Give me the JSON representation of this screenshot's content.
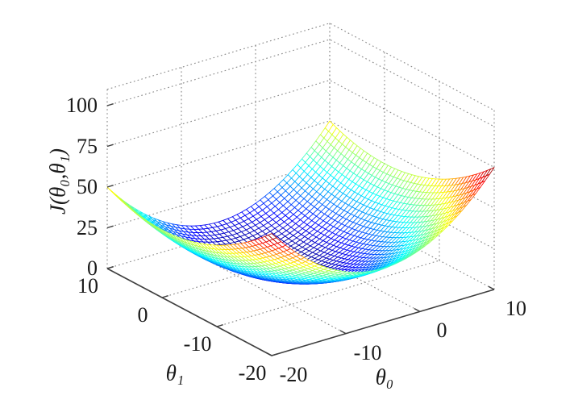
{
  "chart_data": {
    "type": "surface",
    "title": "",
    "xlabel": "θ₀",
    "ylabel": "θ₁",
    "zlabel": "J(θ₀,θ₁)",
    "x_ticks": [
      -20,
      -10,
      0,
      10
    ],
    "y_ticks": [
      10,
      0,
      -10,
      -20
    ],
    "z_ticks": [
      0,
      25,
      50,
      75,
      100
    ],
    "x_range": [
      -20,
      10
    ],
    "y_range": [
      -20,
      10
    ],
    "z_range": [
      0,
      110
    ],
    "surface": {
      "description": "convex bowl-shaped cost surface J(theta0,theta1) = a*(theta0-t0_min)^2 + b*(theta1-t1_min)^2",
      "params": {
        "a": 0.185,
        "b": 0.08333,
        "t0_min": -5,
        "t1_min": 0
      },
      "corner_values": [
        {
          "theta0": -20,
          "theta1": 10,
          "J": 50
        },
        {
          "theta0": -20,
          "theta1": -20,
          "J": 75
        },
        {
          "theta0": 10,
          "theta1": -20,
          "J": 75
        },
        {
          "theta0": 10,
          "theta1": 10,
          "J": 50
        }
      ],
      "min_value": 0,
      "grid_divisions": 48,
      "colormap": "jet",
      "color_max": 75
    },
    "style": {
      "background": "#ffffff",
      "grid_color": "#8c8c8c",
      "axis_color": "#3f3f3f",
      "label_color": "#1a1a1a",
      "grid_style": "dotted",
      "legend": "none"
    }
  }
}
